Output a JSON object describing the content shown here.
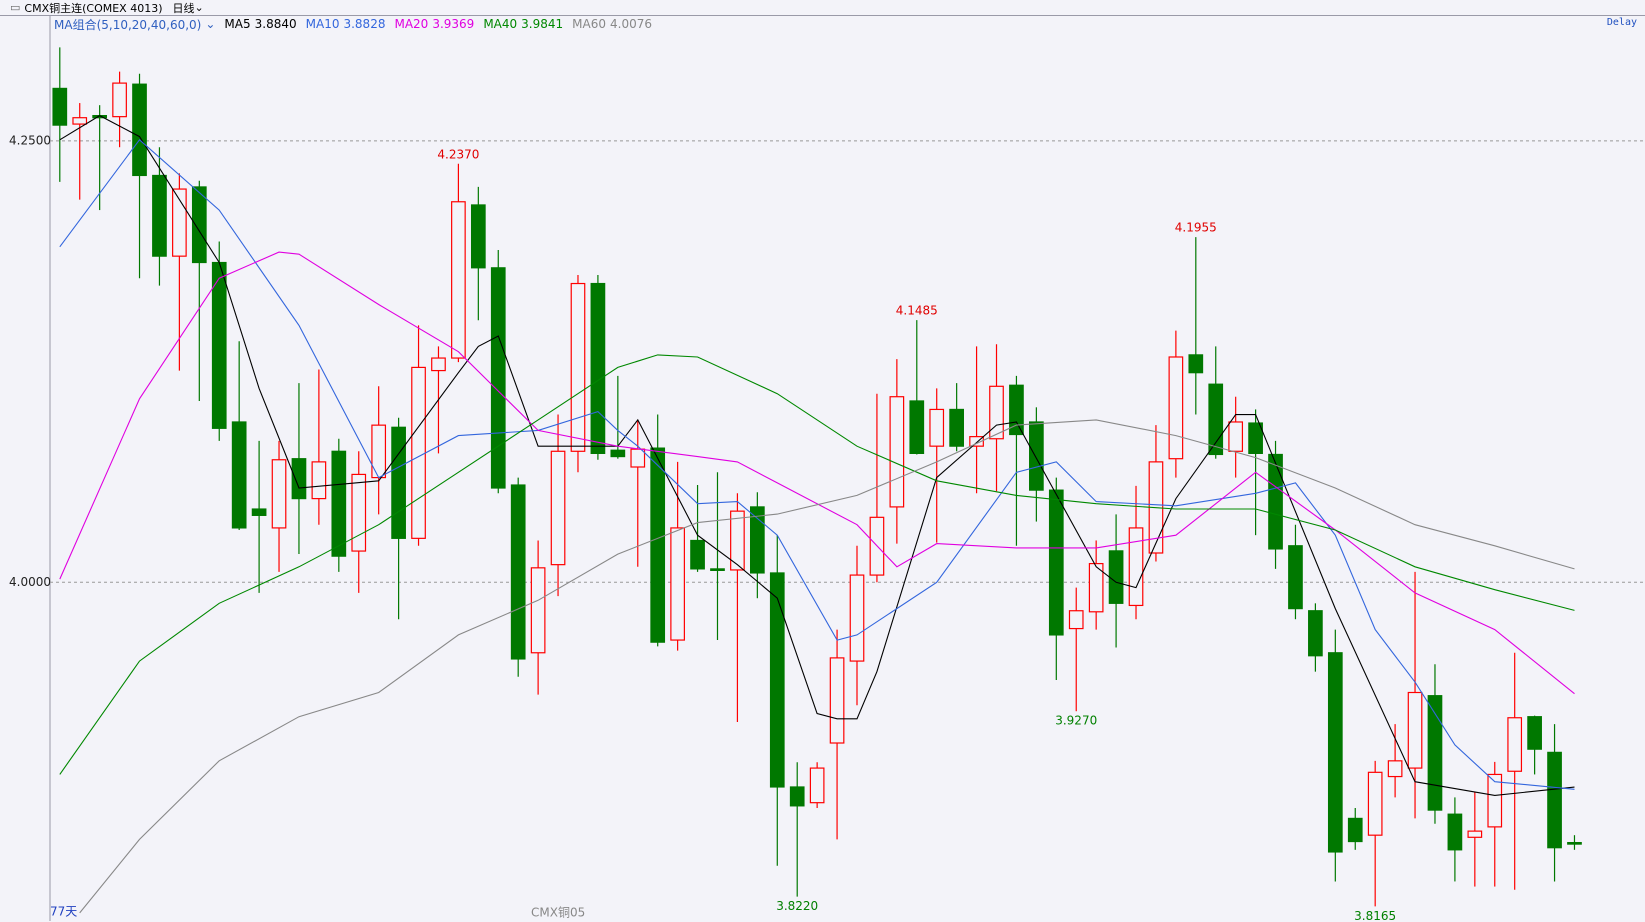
{
  "header": {
    "instrument": "CMX铜主连(COMEX 4013)",
    "period": "日线",
    "status": "Delay"
  },
  "chart_data": {
    "type": "candlestick",
    "indicator_label": "MA组合(5,10,20,40,60,0)",
    "open": [
      4.2797,
      4.2595,
      4.2643,
      4.2637,
      4.2821,
      4.2304,
      4.1847,
      4.2239,
      4.1811,
      4.0908,
      4.0415,
      4.0308,
      4.07,
      4.0474,
      4.0742,
      4.0177,
      4.0593,
      4.0878,
      4.0249,
      4.1199,
      4.127,
      4.2137,
      4.1781,
      4.0551,
      3.9601,
      4.01,
      4.0742,
      4.1692,
      4.0748,
      4.0653,
      4.076,
      3.9673,
      4.0237,
      4.0076,
      4.007,
      4.0427,
      4.0053,
      3.8841,
      3.8752,
      3.909,
      3.9554,
      4.0041,
      4.0427,
      4.1027,
      4.0771,
      4.0979,
      4.0771,
      4.0813,
      4.1116,
      4.0908,
      4.0522,
      3.9738,
      3.9833,
      4.0178,
      3.9869,
      4.0166,
      4.07,
      4.1288,
      4.1122,
      4.0742,
      4.0902,
      4.0724,
      4.0207,
      3.9839,
      3.9601,
      3.8663,
      3.8568,
      3.89,
      3.8948,
      3.9358,
      3.8687,
      3.8556,
      3.8615,
      3.893,
      3.9239,
      3.9037,
      3.8526
    ],
    "high": [
      4.3029,
      4.2714,
      4.2702,
      4.2892,
      4.288,
      4.2464,
      4.2316,
      4.2274,
      4.193,
      4.1365,
      4.0801,
      4.0801,
      4.1128,
      4.1205,
      4.0813,
      4.0742,
      4.111,
      4.0932,
      4.1455,
      4.1336,
      4.237,
      4.2239,
      4.1882,
      4.0593,
      4.0237,
      4.095,
      4.174,
      4.174,
      4.1169,
      4.092,
      4.095,
      4.0682,
      4.0551,
      4.0623,
      4.0504,
      4.051,
      4.0267,
      3.8981,
      3.8981,
      3.9732,
      4.0207,
      4.1068,
      4.1264,
      4.1485,
      4.1098,
      4.1128,
      4.1336,
      4.1348,
      4.1169,
      4.0991,
      4.0593,
      3.997,
      4.0237,
      4.0385,
      4.0546,
      4.089,
      4.1425,
      4.1955,
      4.1336,
      4.1051,
      4.0979,
      4.0801,
      4.0326,
      3.9881,
      3.9732,
      3.8722,
      3.8989,
      3.9197,
      4.0059,
      3.9536,
      3.8782,
      3.8811,
      3.8983,
      3.9601,
      3.9245,
      3.9197,
      3.8568
    ],
    "low": [
      4.2268,
      4.2167,
      4.2108,
      4.2464,
      4.1722,
      4.168,
      4.1199,
      4.1027,
      4.0801,
      4.0296,
      3.994,
      4.0059,
      4.016,
      4.0326,
      4.0059,
      3.994,
      4.0385,
      3.9791,
      4.0207,
      4.073,
      4.1247,
      4.1484,
      4.0504,
      3.9465,
      3.9364,
      3.9922,
      4.0623,
      4.0694,
      4.07,
      4.0088,
      3.9637,
      3.9613,
      4.0059,
      3.9673,
      3.9209,
      3.991,
      3.8395,
      3.822,
      3.8722,
      3.8544,
      3.9304,
      4.0,
      4.0219,
      4.0724,
      4.0225,
      4.0742,
      4.0504,
      4.0516,
      4.0207,
      4.0344,
      3.9447,
      3.927,
      3.9732,
      3.9631,
      3.9791,
      4.0118,
      4.0593,
      4.095,
      4.07,
      4.0593,
      4.0267,
      4.0076,
      3.9791,
      3.9494,
      3.8306,
      3.8485,
      3.8165,
      3.8782,
      3.8663,
      3.8633,
      3.8306,
      3.8277,
      3.8277,
      3.8259,
      3.8912,
      3.8306,
      3.8485
    ],
    "close": [
      4.2589,
      4.2631,
      4.2631,
      4.2827,
      4.2304,
      4.1847,
      4.2227,
      4.1811,
      4.0872,
      4.0308,
      4.0379,
      4.0694,
      4.0474,
      4.0682,
      4.0148,
      4.0611,
      4.089,
      4.0249,
      4.1217,
      4.127,
      4.2155,
      4.1781,
      4.0534,
      3.9566,
      4.0082,
      4.0742,
      4.1692,
      4.073,
      4.0712,
      4.0754,
      3.9661,
      4.0308,
      4.0076,
      4.007,
      4.0403,
      4.0053,
      3.8841,
      3.8734,
      3.8948,
      3.9572,
      4.0041,
      4.0368,
      4.1051,
      4.073,
      4.0979,
      4.0771,
      4.0825,
      4.111,
      4.0837,
      4.0522,
      3.9702,
      3.9839,
      4.0106,
      3.9881,
      4.0308,
      4.0682,
      4.1276,
      4.1187,
      4.0724,
      4.0908,
      4.073,
      4.0189,
      3.9851,
      3.9584,
      3.8473,
      3.8532,
      3.8924,
      3.8989,
      3.9376,
      3.871,
      3.8485,
      3.8591,
      3.8912,
      3.9233,
      3.9055,
      3.8497,
      3.852
    ],
    "high_labels": [
      null,
      null,
      null,
      null,
      null,
      null,
      null,
      null,
      null,
      null,
      null,
      null,
      null,
      null,
      null,
      null,
      null,
      null,
      null,
      null,
      "4.2370",
      null,
      null,
      null,
      null,
      null,
      null,
      null,
      null,
      null,
      null,
      null,
      null,
      null,
      null,
      null,
      null,
      null,
      null,
      null,
      null,
      null,
      null,
      "4.1485",
      null,
      null,
      null,
      null,
      null,
      null,
      null,
      null,
      null,
      null,
      null,
      null,
      null,
      "4.1955",
      null,
      null,
      null,
      null,
      null,
      null,
      null,
      null,
      null,
      null,
      null,
      null,
      null,
      null,
      null,
      null,
      null,
      null,
      null
    ],
    "low_labels": [
      null,
      null,
      null,
      null,
      null,
      null,
      null,
      null,
      null,
      null,
      null,
      null,
      null,
      null,
      null,
      null,
      null,
      null,
      null,
      null,
      null,
      null,
      null,
      null,
      null,
      null,
      null,
      null,
      null,
      null,
      null,
      null,
      null,
      null,
      null,
      null,
      null,
      "3.8220",
      null,
      null,
      null,
      null,
      null,
      null,
      null,
      null,
      null,
      null,
      null,
      null,
      null,
      "3.9270",
      null,
      null,
      null,
      null,
      null,
      null,
      null,
      null,
      null,
      null,
      null,
      null,
      null,
      null,
      "3.8165",
      null,
      null,
      null,
      null,
      null,
      null,
      null,
      null,
      null,
      null
    ],
    "up_color": "#ff0000",
    "down_color": "#007800",
    "ylim": [
      3.8082,
      4.3207
    ],
    "yticks": [
      {
        "value": 4.25,
        "label": "4.2500"
      },
      {
        "value": 4,
        "label": "4.0000"
      }
    ],
    "grid": true,
    "series": [
      {
        "name": "MA5",
        "color": "#000000",
        "last_label": "3.8840",
        "x": [
          0,
          2,
          4,
          8,
          10,
          12,
          16,
          20,
          21,
          22,
          24,
          28,
          29,
          32,
          34,
          36,
          38,
          39,
          40,
          41,
          44,
          47,
          48,
          52,
          53,
          54,
          56,
          59,
          60,
          64,
          68,
          72,
          76
        ],
        "values": [
          4.2506,
          4.2643,
          4.2524,
          4.1811,
          4.1098,
          4.0534,
          4.0575,
          4.1187,
          4.1336,
          4.1395,
          4.0771,
          4.0771,
          4.092,
          4.0267,
          4.01,
          3.991,
          3.9257,
          3.9227,
          3.9227,
          3.9494,
          4.0593,
          4.089,
          4.0908,
          4.0088,
          4.0,
          3.997,
          4.0474,
          4.095,
          4.095,
          3.9851,
          3.8871,
          3.8793,
          3.884
        ]
      },
      {
        "name": "MA10",
        "color": "#3366dd",
        "last_label": "3.8828",
        "x": [
          0,
          4,
          8,
          12,
          16,
          20,
          24,
          27,
          28,
          29,
          32,
          34,
          36,
          39,
          40,
          44,
          48,
          50,
          52,
          56,
          60,
          62,
          64,
          66,
          68,
          70,
          72,
          76
        ],
        "values": [
          4.19,
          4.2506,
          4.2108,
          4.1455,
          4.0593,
          4.0831,
          4.086,
          4.0967,
          4.086,
          4.0771,
          4.0445,
          4.0457,
          4.0267,
          3.9673,
          3.9702,
          4.0,
          4.0623,
          4.0682,
          4.0457,
          4.0433,
          4.0504,
          4.0563,
          4.0267,
          3.9732,
          3.9435,
          3.9079,
          3.8871,
          3.8828
        ]
      },
      {
        "name": "MA20",
        "color": "#e000e0",
        "last_label": "3.9369",
        "x": [
          0,
          4,
          8,
          11,
          12,
          16,
          20,
          24,
          28,
          32,
          34,
          36,
          40,
          42,
          44,
          48,
          52,
          56,
          60,
          64,
          68,
          72,
          76
        ],
        "values": [
          4.0018,
          4.1039,
          4.1722,
          4.187,
          4.1858,
          4.1573,
          4.1306,
          4.086,
          4.0771,
          4.0712,
          4.0682,
          4.0563,
          4.0326,
          4.0088,
          4.0219,
          4.0195,
          4.0195,
          4.0267,
          4.0623,
          4.0296,
          3.994,
          3.9732,
          3.9369
        ]
      },
      {
        "name": "MA40",
        "color": "#008800",
        "last_label": "3.9841",
        "x": [
          0,
          4,
          8,
          12,
          16,
          20,
          24,
          28,
          30,
          32,
          36,
          40,
          44,
          48,
          52,
          56,
          60,
          64,
          68,
          72,
          76
        ],
        "values": [
          3.8912,
          3.9554,
          3.9881,
          4.0088,
          4.0326,
          4.0623,
          4.092,
          4.1217,
          4.1288,
          4.1276,
          4.1068,
          4.0771,
          4.0575,
          4.0492,
          4.0445,
          4.0415,
          4.0415,
          4.0296,
          4.0088,
          3.9958,
          3.9841
        ]
      },
      {
        "name": "MA60",
        "color": "#888888",
        "last_label": "4.0076",
        "x": [
          1,
          4,
          8,
          12,
          16,
          20,
          24,
          28,
          32,
          36,
          40,
          44,
          48,
          52,
          56,
          60,
          64,
          68,
          72,
          76
        ],
        "values": [
          3.8128,
          3.8544,
          3.8989,
          3.9239,
          3.9376,
          3.9702,
          3.9898,
          4.016,
          4.0338,
          4.0386,
          4.0492,
          4.0682,
          4.089,
          4.092,
          4.0831,
          4.0706,
          4.0534,
          4.0326,
          4.0207,
          4.0076
        ]
      }
    ],
    "period_count": "77天",
    "contract_label": "CMX铜05"
  }
}
